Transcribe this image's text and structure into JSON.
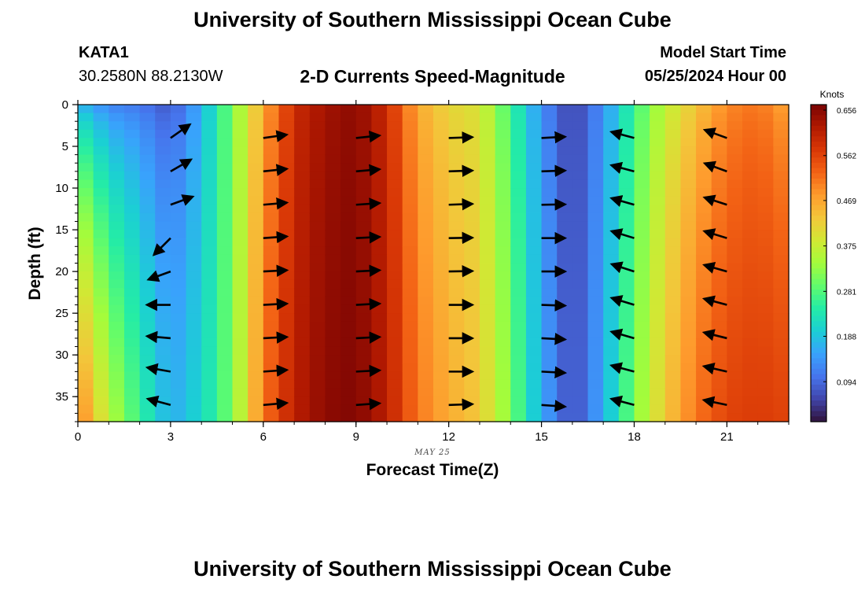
{
  "header": {
    "title": "University of Southern Mississippi Ocean Cube",
    "station_id": "KATA1",
    "coordinates": "30.2580N  88.2130W",
    "plot_title": "2-D Currents Speed-Magnitude",
    "model_label": "Model Start Time",
    "model_time": "05/25/2024 Hour 00"
  },
  "footer": {
    "title": "University of Southern Mississippi Ocean Cube"
  },
  "chart_data": {
    "type": "heatmap",
    "xlabel": "Forecast Time(Z)",
    "ylabel": "Depth (ft)",
    "date_label": "MAY 25",
    "xlim": [
      0,
      23
    ],
    "ylim": [
      38,
      0
    ],
    "x_ticks": [
      0,
      3,
      6,
      9,
      12,
      15,
      18,
      21
    ],
    "y_ticks": [
      0,
      5,
      10,
      15,
      20,
      25,
      30,
      35
    ],
    "colorbar": {
      "unit": "Knots",
      "min": 0.0,
      "max": 0.656,
      "ticks": [
        "0.656",
        "0.562",
        "0.469",
        "0.375",
        "0.281",
        "0.188",
        "0.094"
      ],
      "colors": [
        "#30123b",
        "#4145ab",
        "#4675ed",
        "#39a2fc",
        "#1bcfd4",
        "#24eca6",
        "#61fc6c",
        "#a4fc3b",
        "#d1e834",
        "#f3c63a",
        "#fe9b2d",
        "#f36315",
        "#d93806",
        "#b11901",
        "#7a0403"
      ]
    },
    "hours": [
      0,
      1,
      2,
      3,
      4,
      5,
      6,
      7,
      8,
      9,
      10,
      11,
      12,
      13,
      14,
      15,
      16,
      17,
      18,
      19,
      20,
      21,
      22,
      23
    ],
    "surface_speed": [
      0.15,
      0.1,
      0.09,
      0.06,
      0.15,
      0.3,
      0.45,
      0.58,
      0.62,
      0.64,
      0.58,
      0.45,
      0.4,
      0.38,
      0.25,
      0.12,
      0.04,
      0.12,
      0.25,
      0.35,
      0.42,
      0.48,
      0.5,
      0.45
    ],
    "bottom_speed": [
      0.5,
      0.35,
      0.25,
      0.15,
      0.2,
      0.3,
      0.5,
      0.6,
      0.64,
      0.65,
      0.6,
      0.5,
      0.45,
      0.42,
      0.3,
      0.15,
      0.05,
      0.15,
      0.3,
      0.42,
      0.5,
      0.55,
      0.56,
      0.55
    ],
    "vectors": [
      {
        "hour": 3,
        "dir_deg": [
          35,
          30,
          20,
          225,
          200,
          180,
          175,
          170,
          165
        ]
      },
      {
        "hour": 6,
        "dir_deg": [
          8,
          6,
          5,
          4,
          3,
          3,
          3,
          4,
          5
        ]
      },
      {
        "hour": 9,
        "dir_deg": [
          6,
          5,
          4,
          3,
          3,
          3,
          3,
          3,
          4
        ]
      },
      {
        "hour": 12,
        "dir_deg": [
          2,
          2,
          2,
          1,
          1,
          0,
          0,
          0,
          2
        ]
      },
      {
        "hour": 15,
        "dir_deg": [
          3,
          2,
          1,
          0,
          0,
          -2,
          -3,
          -3,
          -4
        ]
      },
      {
        "hour": 18,
        "dir_deg": [
          165,
          165,
          164,
          163,
          162,
          163,
          164,
          165,
          165
        ]
      },
      {
        "hour": 21,
        "dir_deg": [
          160,
          160,
          162,
          163,
          164,
          165,
          166,
          167,
          168
        ]
      }
    ]
  }
}
